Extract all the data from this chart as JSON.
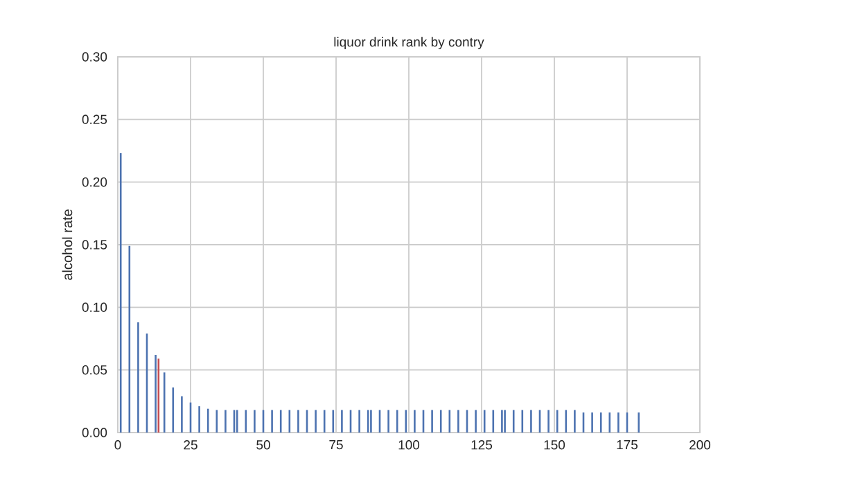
{
  "chart_data": {
    "type": "bar",
    "title": "liquor drink rank by contry",
    "ylabel": "alcohol rate",
    "x": [
      1,
      4,
      7,
      10,
      13,
      14,
      16,
      19,
      22,
      25,
      28,
      31,
      34,
      37,
      40,
      41,
      44,
      47,
      50,
      53,
      56,
      59,
      62,
      65,
      68,
      71,
      74,
      77,
      80,
      83,
      86,
      87,
      90,
      93,
      96,
      99,
      102,
      105,
      108,
      111,
      114,
      117,
      120,
      123,
      126,
      129,
      132,
      133,
      136,
      139,
      142,
      145,
      148,
      151,
      154,
      157,
      160,
      163,
      166,
      169,
      172,
      175,
      179
    ],
    "values": [
      0.223,
      0.149,
      0.088,
      0.079,
      0.062,
      0.059,
      0.048,
      0.036,
      0.029,
      0.024,
      0.021,
      0.019,
      0.018,
      0.018,
      0.018,
      0.018,
      0.018,
      0.018,
      0.018,
      0.018,
      0.018,
      0.018,
      0.018,
      0.018,
      0.018,
      0.018,
      0.018,
      0.018,
      0.018,
      0.018,
      0.018,
      0.018,
      0.018,
      0.018,
      0.018,
      0.018,
      0.018,
      0.018,
      0.018,
      0.018,
      0.018,
      0.018,
      0.018,
      0.018,
      0.018,
      0.018,
      0.018,
      0.018,
      0.018,
      0.018,
      0.018,
      0.018,
      0.018,
      0.018,
      0.018,
      0.018,
      0.016,
      0.016,
      0.016,
      0.016,
      0.016,
      0.016,
      0.016
    ],
    "colors": [
      "#4c72b0",
      "#4c72b0",
      "#4c72b0",
      "#4c72b0",
      "#4c72b0",
      "#c44e52",
      "#4c72b0",
      "#4c72b0",
      "#4c72b0",
      "#4c72b0",
      "#4c72b0",
      "#4c72b0",
      "#4c72b0",
      "#4c72b0",
      "#4c72b0",
      "#4c72b0",
      "#4c72b0",
      "#4c72b0",
      "#4c72b0",
      "#4c72b0",
      "#4c72b0",
      "#4c72b0",
      "#4c72b0",
      "#4c72b0",
      "#4c72b0",
      "#4c72b0",
      "#4c72b0",
      "#4c72b0",
      "#4c72b0",
      "#4c72b0",
      "#4c72b0",
      "#4c72b0",
      "#4c72b0",
      "#4c72b0",
      "#4c72b0",
      "#4c72b0",
      "#4c72b0",
      "#4c72b0",
      "#4c72b0",
      "#4c72b0",
      "#4c72b0",
      "#4c72b0",
      "#4c72b0",
      "#4c72b0",
      "#4c72b0",
      "#4c72b0",
      "#4c72b0",
      "#4c72b0",
      "#4c72b0",
      "#4c72b0",
      "#4c72b0",
      "#4c72b0",
      "#4c72b0",
      "#4c72b0",
      "#4c72b0",
      "#4c72b0",
      "#4c72b0",
      "#4c72b0",
      "#4c72b0",
      "#4c72b0",
      "#4c72b0",
      "#4c72b0",
      "#4c72b0"
    ],
    "xlim": [
      0,
      200
    ],
    "xticks": [
      0,
      25,
      50,
      75,
      100,
      125,
      150,
      175,
      200
    ],
    "ylim": [
      0,
      0.3
    ],
    "yticks": [
      {
        "value": 0,
        "label": "0.00"
      },
      {
        "value": 0.05,
        "label": "0.05"
      },
      {
        "value": 0.1,
        "label": "0.10"
      },
      {
        "value": 0.15,
        "label": "0.15"
      },
      {
        "value": 0.2,
        "label": "0.20"
      },
      {
        "value": 0.25,
        "label": "0.25"
      },
      {
        "value": 0.3,
        "label": "0.30"
      }
    ],
    "grid": true
  }
}
